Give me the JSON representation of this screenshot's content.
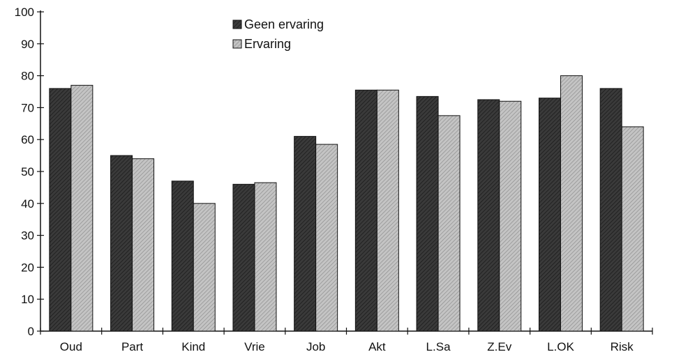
{
  "chart_data": {
    "type": "bar",
    "categories": [
      "Oud",
      "Part",
      "Kind",
      "Vrie",
      "Job",
      "Akt",
      "L.Sa",
      "Z.Ev",
      "L.OK",
      "Risk"
    ],
    "series": [
      {
        "name": "Geen ervaring",
        "values": [
          76,
          55,
          47,
          46,
          61,
          75.5,
          73.5,
          72.5,
          73,
          76
        ],
        "color": "#3a3a3a",
        "pattern": "dark-hatch"
      },
      {
        "name": "Ervaring",
        "values": [
          77,
          54,
          40,
          46.5,
          58.5,
          75.5,
          67.5,
          72,
          80,
          64
        ],
        "color": "#b8b8b8",
        "pattern": "light-hatch"
      }
    ],
    "yticks": [
      0,
      10,
      20,
      30,
      40,
      50,
      60,
      70,
      80,
      90,
      100
    ],
    "ylim": [
      0,
      100
    ],
    "title": "",
    "xlabel": "",
    "ylabel": "",
    "legend_position": "top-center",
    "grid": false
  }
}
